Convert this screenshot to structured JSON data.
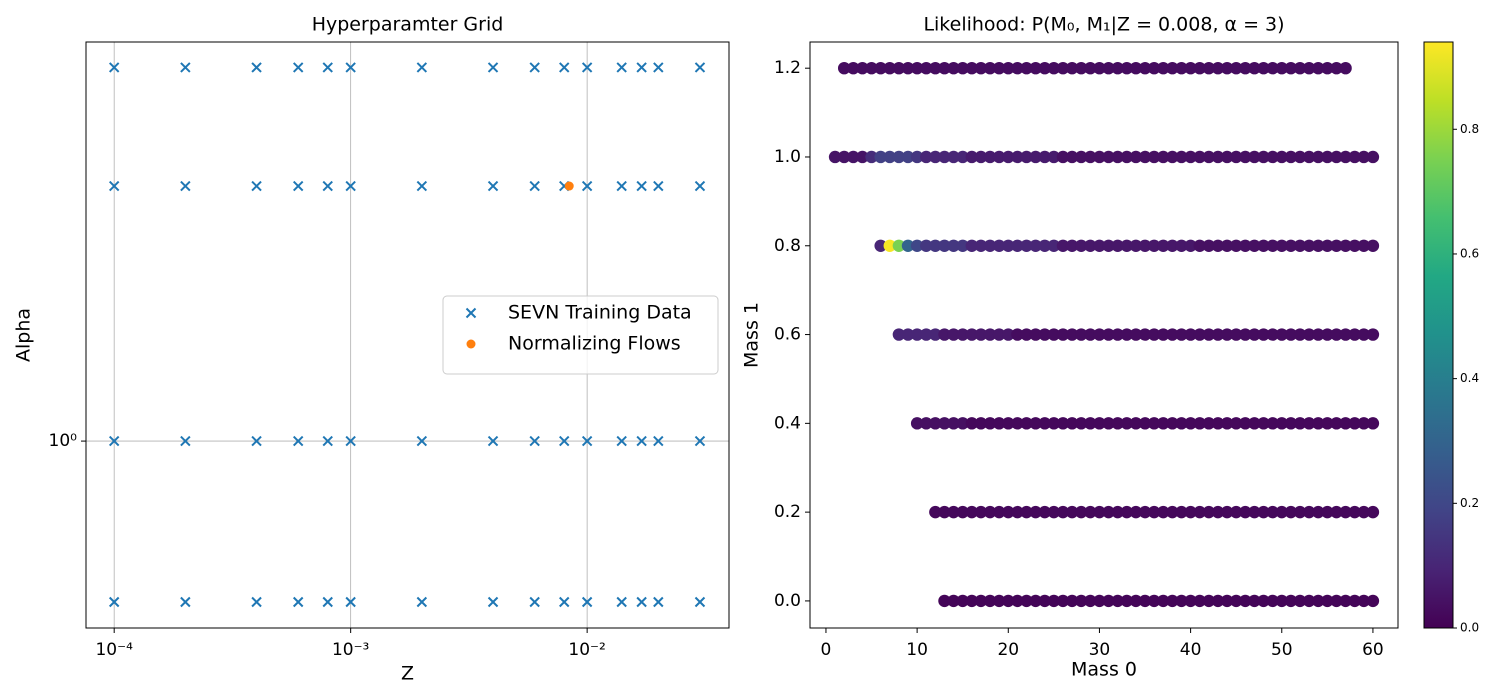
{
  "chart_data": [
    {
      "type": "scatter",
      "title": "Hyperparamter Grid",
      "xlabel": "Z",
      "ylabel": "Alpha",
      "xscale": "log",
      "yscale": "log",
      "grid": true,
      "legend": "center right",
      "xlim": [
        7.6e-05,
        0.0398
      ],
      "ylim": [
        0.447,
        5.58
      ],
      "xticks": [
        {
          "value": 0.0001,
          "label": "10⁻⁴"
        },
        {
          "value": 0.001,
          "label": "10⁻³"
        },
        {
          "value": 0.01,
          "label": "10⁻²"
        }
      ],
      "yticks": [
        {
          "value": 1,
          "label": "10⁰"
        }
      ],
      "series": [
        {
          "name": "SEVN Training Data",
          "color": "#1f77b4",
          "marker": "x",
          "x": [
            0.0001,
            0.0002,
            0.0004,
            0.0006,
            0.0008,
            0.001,
            0.002,
            0.004,
            0.006,
            0.008,
            0.01,
            0.014,
            0.017,
            0.02,
            0.03,
            0.0001,
            0.0002,
            0.0004,
            0.0006,
            0.0008,
            0.001,
            0.002,
            0.004,
            0.006,
            0.008,
            0.01,
            0.014,
            0.017,
            0.02,
            0.03,
            0.0001,
            0.0002,
            0.0004,
            0.0006,
            0.0008,
            0.001,
            0.002,
            0.004,
            0.006,
            0.008,
            0.01,
            0.014,
            0.017,
            0.02,
            0.03,
            0.0001,
            0.0002,
            0.0004,
            0.0006,
            0.0008,
            0.001,
            0.002,
            0.004,
            0.006,
            0.008,
            0.01,
            0.014,
            0.017,
            0.02,
            0.03
          ],
          "values": [
            5,
            5,
            5,
            5,
            5,
            5,
            5,
            5,
            5,
            5,
            5,
            5,
            5,
            5,
            5,
            3,
            3,
            3,
            3,
            3,
            3,
            3,
            3,
            3,
            3,
            3,
            3,
            3,
            3,
            3,
            1,
            1,
            1,
            1,
            1,
            1,
            1,
            1,
            1,
            1,
            1,
            1,
            1,
            1,
            1,
            0.5,
            0.5,
            0.5,
            0.5,
            0.5,
            0.5,
            0.5,
            0.5,
            0.5,
            0.5,
            0.5,
            0.5,
            0.5,
            0.5,
            0.5
          ]
        },
        {
          "name": "Normalizing Flows",
          "color": "#ff7f0e",
          "marker": "o",
          "x": [
            0.0084
          ],
          "values": [
            3
          ]
        }
      ]
    },
    {
      "type": "scatter",
      "title": "Likelihood: P(M₀, M₁|Z = 0.008, α = 3)",
      "xlabel": "Mass 0",
      "ylabel": "Mass 1",
      "xlim": [
        -1.75,
        62.75
      ],
      "ylim": [
        -0.061,
        1.259
      ],
      "xticks": [
        0,
        10,
        20,
        30,
        40,
        50,
        60
      ],
      "yticks": [
        {
          "value": 0,
          "label": "0.0"
        },
        0.2,
        0.4,
        0.6,
        0.8,
        {
          "value": 1,
          "label": "1.0"
        },
        1.2
      ],
      "colorbar": {
        "colormap": "viridis",
        "clim": [
          0,
          0.94
        ],
        "ticks": [
          {
            "value": 0,
            "label": "0.0"
          },
          0.2,
          0.4,
          0.6,
          0.8
        ]
      },
      "series": [
        {
          "y": 1.2,
          "x": [
            2,
            3,
            4,
            5,
            6,
            7,
            8,
            9,
            10,
            11,
            12,
            13,
            14,
            15,
            16,
            17,
            18,
            19,
            20,
            21,
            22,
            23,
            24,
            25,
            26,
            27,
            28,
            29,
            30,
            31,
            32,
            33,
            34,
            35,
            36,
            37,
            38,
            39,
            40,
            41,
            42,
            43,
            44,
            45,
            46,
            47,
            48,
            49,
            50,
            51,
            52,
            53,
            54,
            55,
            56,
            57
          ],
          "c": [
            0.03,
            0.03,
            0.03,
            0.03,
            0.03,
            0.03,
            0.03,
            0.03,
            0.03,
            0.03,
            0.03,
            0.03,
            0.03,
            0.03,
            0.03,
            0.03,
            0.03,
            0.03,
            0.03,
            0.03,
            0.03,
            0.03,
            0.03,
            0.03,
            0.03,
            0.03,
            0.03,
            0.03,
            0.03,
            0.03,
            0.03,
            0.03,
            0.03,
            0.03,
            0.03,
            0.03,
            0.03,
            0.03,
            0.03,
            0.03,
            0.03,
            0.03,
            0.03,
            0.03,
            0.03,
            0.03,
            0.03,
            0.03,
            0.03,
            0.03,
            0.03,
            0.03,
            0.03,
            0.03,
            0.03,
            0.03
          ]
        },
        {
          "y": 1,
          "x": [
            1,
            2,
            3,
            4,
            5,
            6,
            7,
            8,
            9,
            10,
            11,
            12,
            13,
            14,
            15,
            16,
            17,
            18,
            19,
            20,
            21,
            22,
            23,
            24,
            25,
            26,
            27,
            28,
            29,
            30,
            31,
            32,
            33,
            34,
            35,
            36,
            37,
            38,
            39,
            40,
            41,
            42,
            43,
            44,
            45,
            46,
            47,
            48,
            49,
            50,
            51,
            52,
            53,
            54,
            55,
            56,
            57,
            58,
            59,
            60
          ],
          "c": [
            0.05,
            0.05,
            0.05,
            0.05,
            0.12,
            0.18,
            0.18,
            0.18,
            0.18,
            0.15,
            0.1,
            0.1,
            0.1,
            0.1,
            0.1,
            0.07,
            0.07,
            0.07,
            0.07,
            0.07,
            0.07,
            0.07,
            0.07,
            0.07,
            0.07,
            0.04,
            0.04,
            0.04,
            0.04,
            0.04,
            0.04,
            0.04,
            0.04,
            0.04,
            0.04,
            0.04,
            0.04,
            0.04,
            0.04,
            0.04,
            0.04,
            0.04,
            0.04,
            0.04,
            0.04,
            0.04,
            0.04,
            0.04,
            0.04,
            0.04,
            0.04,
            0.04,
            0.04,
            0.04,
            0.04,
            0.04,
            0.04,
            0.04,
            0.04,
            0.04
          ]
        },
        {
          "y": 0.8,
          "x": [
            6,
            7,
            8,
            9,
            10,
            11,
            12,
            13,
            14,
            15,
            16,
            17,
            18,
            19,
            20,
            21,
            22,
            23,
            24,
            25,
            26,
            27,
            28,
            29,
            30,
            31,
            32,
            33,
            34,
            35,
            36,
            37,
            38,
            39,
            40,
            41,
            42,
            43,
            44,
            45,
            46,
            47,
            48,
            49,
            50,
            51,
            52,
            53,
            54,
            55,
            56,
            57,
            58,
            59,
            60
          ],
          "c": [
            0.1,
            0.93,
            0.75,
            0.3,
            0.2,
            0.15,
            0.15,
            0.15,
            0.15,
            0.15,
            0.1,
            0.1,
            0.1,
            0.1,
            0.1,
            0.1,
            0.1,
            0.1,
            0.1,
            0.1,
            0.06,
            0.06,
            0.06,
            0.06,
            0.06,
            0.06,
            0.06,
            0.06,
            0.06,
            0.06,
            0.06,
            0.06,
            0.06,
            0.06,
            0.06,
            0.04,
            0.04,
            0.04,
            0.04,
            0.04,
            0.04,
            0.04,
            0.04,
            0.04,
            0.04,
            0.04,
            0.04,
            0.04,
            0.04,
            0.04,
            0.04,
            0.04,
            0.04,
            0.04,
            0.04
          ]
        },
        {
          "y": 0.6,
          "x": [
            8,
            9,
            10,
            11,
            12,
            13,
            14,
            15,
            16,
            17,
            18,
            19,
            20,
            21,
            22,
            23,
            24,
            25,
            26,
            27,
            28,
            29,
            30,
            31,
            32,
            33,
            34,
            35,
            36,
            37,
            38,
            39,
            40,
            41,
            42,
            43,
            44,
            45,
            46,
            47,
            48,
            49,
            50,
            51,
            52,
            53,
            54,
            55,
            56,
            57,
            58,
            59,
            60
          ],
          "c": [
            0.1,
            0.1,
            0.1,
            0.1,
            0.1,
            0.06,
            0.06,
            0.06,
            0.06,
            0.06,
            0.06,
            0.06,
            0.06,
            0.03,
            0.03,
            0.03,
            0.03,
            0.03,
            0.03,
            0.03,
            0.03,
            0.03,
            0.03,
            0.03,
            0.03,
            0.03,
            0.03,
            0.03,
            0.03,
            0.03,
            0.03,
            0.03,
            0.03,
            0.03,
            0.03,
            0.03,
            0.03,
            0.03,
            0.03,
            0.03,
            0.03,
            0.03,
            0.03,
            0.03,
            0.03,
            0.03,
            0.03,
            0.03,
            0.03,
            0.03,
            0.03,
            0.03,
            0.03
          ]
        },
        {
          "y": 0.4,
          "x": [
            10,
            11,
            12,
            13,
            14,
            15,
            16,
            17,
            18,
            19,
            20,
            21,
            22,
            23,
            24,
            25,
            26,
            27,
            28,
            29,
            30,
            31,
            32,
            33,
            34,
            35,
            36,
            37,
            38,
            39,
            40,
            41,
            42,
            43,
            44,
            45,
            46,
            47,
            48,
            49,
            50,
            51,
            52,
            53,
            54,
            55,
            56,
            57,
            58,
            59,
            60
          ],
          "c": [
            0.04,
            0.04,
            0.04,
            0.04,
            0.04,
            0.04,
            0.02,
            0.02,
            0.02,
            0.02,
            0.02,
            0.02,
            0.02,
            0.02,
            0.02,
            0.02,
            0.02,
            0.02,
            0.02,
            0.02,
            0.02,
            0.02,
            0.02,
            0.02,
            0.02,
            0.02,
            0.02,
            0.02,
            0.02,
            0.02,
            0.02,
            0.02,
            0.02,
            0.02,
            0.02,
            0.02,
            0.02,
            0.02,
            0.02,
            0.02,
            0.02,
            0.02,
            0.02,
            0.02,
            0.02,
            0.02,
            0.02,
            0.02,
            0.02,
            0.02,
            0.02
          ]
        },
        {
          "y": 0.2,
          "x": [
            12,
            13,
            14,
            15,
            16,
            17,
            18,
            19,
            20,
            21,
            22,
            23,
            24,
            25,
            26,
            27,
            28,
            29,
            30,
            31,
            32,
            33,
            34,
            35,
            36,
            37,
            38,
            39,
            40,
            41,
            42,
            43,
            44,
            45,
            46,
            47,
            48,
            49,
            50,
            51,
            52,
            53,
            54,
            55,
            56,
            57,
            58,
            59,
            60
          ],
          "c": [
            0.02,
            0.02,
            0.02,
            0.02,
            0.02,
            0.02,
            0.02,
            0.02,
            0.02,
            0.02,
            0.02,
            0.02,
            0.02,
            0.02,
            0.02,
            0.02,
            0.02,
            0.02,
            0.02,
            0.02,
            0.02,
            0.02,
            0.02,
            0.02,
            0.02,
            0.02,
            0.02,
            0.02,
            0.02,
            0.02,
            0.02,
            0.02,
            0.02,
            0.02,
            0.02,
            0.02,
            0.02,
            0.02,
            0.02,
            0.02,
            0.02,
            0.02,
            0.02,
            0.02,
            0.02,
            0.02,
            0.02,
            0.02,
            0.02
          ]
        },
        {
          "y": 0,
          "x": [
            13,
            14,
            15,
            16,
            17,
            18,
            19,
            20,
            21,
            22,
            23,
            24,
            25,
            26,
            27,
            28,
            29,
            30,
            31,
            32,
            33,
            34,
            35,
            36,
            37,
            38,
            39,
            40,
            41,
            42,
            43,
            44,
            45,
            46,
            47,
            48,
            49,
            50,
            51,
            52,
            53,
            54,
            55,
            56,
            57,
            58,
            59,
            60
          ],
          "c": [
            0.01,
            0.01,
            0.01,
            0.01,
            0.01,
            0.01,
            0.01,
            0.01,
            0.01,
            0.01,
            0.01,
            0.01,
            0.01,
            0.01,
            0.01,
            0.01,
            0.01,
            0.01,
            0.01,
            0.01,
            0.01,
            0.01,
            0.01,
            0.01,
            0.01,
            0.01,
            0.01,
            0.01,
            0.01,
            0.01,
            0.01,
            0.01,
            0.01,
            0.01,
            0.01,
            0.01,
            0.01,
            0.01,
            0.01,
            0.01,
            0.01,
            0.01,
            0.01,
            0.01,
            0.01,
            0.01,
            0.01,
            0.01
          ]
        }
      ]
    }
  ]
}
